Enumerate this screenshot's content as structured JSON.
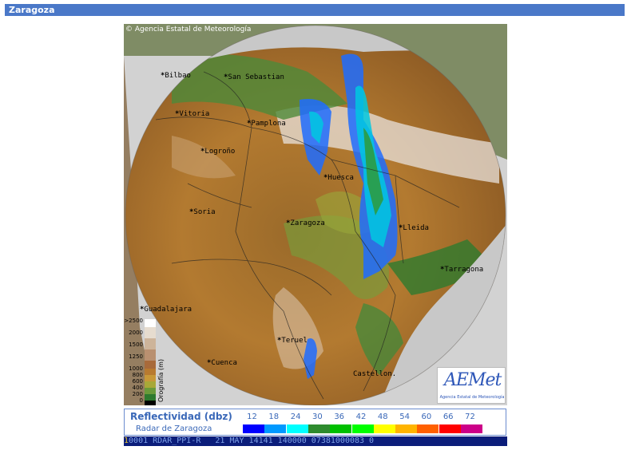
{
  "page": {
    "title": "Zaragoza"
  },
  "map": {
    "copyright": "Agencia Estatal de Meteorología",
    "cities": [
      {
        "name": "Bilbao",
        "id": "bilbao"
      },
      {
        "name": "San Sebastian",
        "id": "san-sebastian"
      },
      {
        "name": "Vitoria",
        "id": "vitoria"
      },
      {
        "name": "Pamplona",
        "id": "pamplona"
      },
      {
        "name": "Logroño",
        "id": "logrono"
      },
      {
        "name": "Huesca",
        "id": "huesca"
      },
      {
        "name": "Soria",
        "id": "soria"
      },
      {
        "name": "Zaragoza",
        "id": "zaragoza"
      },
      {
        "name": "Lleida",
        "id": "lleida"
      },
      {
        "name": "Tarragona",
        "id": "tarragona"
      },
      {
        "name": "Guadalajara",
        "id": "guadalajara"
      },
      {
        "name": "Teruel",
        "id": "teruel"
      },
      {
        "name": "Cuenca",
        "id": "cuenca"
      },
      {
        "name": "Castellon.",
        "id": "castellon"
      }
    ],
    "orography_legend": {
      "title": "Orografía (m)",
      "labels": [
        ">2500",
        "2000",
        "1500",
        "1250",
        "1000",
        "800",
        "600",
        "400",
        "200",
        "0"
      ]
    },
    "logo": {
      "word": "AEMet",
      "subtitle": "Agencia Estatal de Meteorología"
    }
  },
  "legend": {
    "title": "Reflectividad (dbz)",
    "subtitle": "Radar de Zaragoza",
    "scale": [
      {
        "label": "12",
        "color": "#0000ff"
      },
      {
        "label": "18",
        "color": "#0099ff"
      },
      {
        "label": "24",
        "color": "#00ffff"
      },
      {
        "label": "30",
        "color": "#2e8b2e"
      },
      {
        "label": "36",
        "color": "#00c000"
      },
      {
        "label": "42",
        "color": "#00ff00"
      },
      {
        "label": "48",
        "color": "#ffff00"
      },
      {
        "label": "54",
        "color": "#ffb400"
      },
      {
        "label": "60",
        "color": "#ff6000"
      },
      {
        "label": "66",
        "color": "#ff0000"
      },
      {
        "label": "72",
        "color": "#cc0088"
      }
    ]
  },
  "status": {
    "lead": "1",
    "text": "0001 RDAR_PPI-R   21 MAY 14141 140000 07381000083 0"
  }
}
